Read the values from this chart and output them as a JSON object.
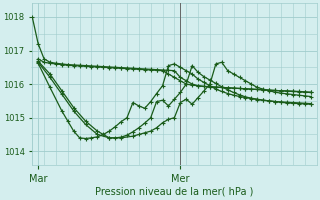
{
  "bg_color": "#d4eeee",
  "grid_color": "#a0cccc",
  "line_color": "#1a5c1a",
  "marker_color": "#1a5c1a",
  "text_color": "#1a5c1a",
  "xlabel": "Pression niveau de la mer( hPa )",
  "yticks": [
    1014,
    1015,
    1016,
    1017,
    1018
  ],
  "ylim": [
    1013.6,
    1018.4
  ],
  "xlim": [
    0,
    48
  ],
  "mar_x": 1,
  "mer_x": 25,
  "vline_x": 25,
  "series": [
    {
      "x": [
        0,
        1,
        2,
        3,
        4,
        5,
        6,
        7,
        8,
        9,
        10,
        11,
        12,
        13,
        14,
        15,
        16,
        17,
        18,
        19,
        20,
        21,
        22,
        23,
        24,
        25,
        26,
        27,
        28,
        29,
        30,
        31,
        32,
        33,
        34,
        35,
        36,
        37,
        38,
        39,
        40,
        41,
        42,
        43,
        44,
        45,
        46,
        47
      ],
      "y": [
        1018.0,
        1017.2,
        1016.75,
        1016.65,
        1016.62,
        1016.6,
        1016.58,
        1016.57,
        1016.56,
        1016.55,
        1016.54,
        1016.53,
        1016.52,
        1016.51,
        1016.5,
        1016.49,
        1016.48,
        1016.47,
        1016.46,
        1016.45,
        1016.44,
        1016.43,
        1016.42,
        1016.41,
        1016.4,
        1016.2,
        1016.1,
        1016.0,
        1015.95,
        1015.93,
        1015.92,
        1015.91,
        1015.9,
        1015.89,
        1015.88,
        1015.87,
        1015.86,
        1015.85,
        1015.84,
        1015.83,
        1015.82,
        1015.81,
        1015.8,
        1015.8,
        1015.79,
        1015.78,
        1015.77,
        1015.76
      ]
    },
    {
      "x": [
        1,
        2,
        3,
        4,
        5,
        6,
        7,
        8,
        9,
        10,
        11,
        12,
        13,
        14,
        15,
        16,
        17,
        18,
        19,
        20,
        21,
        22,
        23,
        24,
        25,
        26,
        27,
        28,
        29,
        30,
        31,
        32,
        33,
        34,
        35,
        36,
        37,
        38,
        39,
        40,
        41,
        42,
        43,
        44,
        45,
        46,
        47
      ],
      "y": [
        1016.75,
        1016.65,
        1016.62,
        1016.6,
        1016.58,
        1016.56,
        1016.55,
        1016.54,
        1016.53,
        1016.52,
        1016.51,
        1016.5,
        1016.49,
        1016.48,
        1016.47,
        1016.46,
        1016.45,
        1016.44,
        1016.43,
        1016.42,
        1016.41,
        1016.4,
        1016.3,
        1016.2,
        1016.1,
        1016.0,
        1015.97,
        1015.95,
        1015.93,
        1015.92,
        1015.91,
        1015.9,
        1015.89,
        1015.88,
        1015.87,
        1015.86,
        1015.85,
        1015.84,
        1015.83,
        1015.82,
        1015.81,
        1015.8,
        1015.79,
        1015.78,
        1015.77,
        1015.76,
        1015.75
      ]
    },
    {
      "x": [
        1,
        3,
        5,
        7,
        9,
        11,
        13,
        15,
        17,
        18,
        19,
        20,
        21,
        22,
        23,
        24,
        25,
        26,
        27,
        28,
        29,
        30,
        31,
        32,
        33,
        34,
        35,
        36,
        37,
        38,
        39,
        40,
        41,
        42,
        43,
        44,
        45,
        46,
        47
      ],
      "y": [
        1016.68,
        1016.3,
        1015.8,
        1015.3,
        1014.9,
        1014.6,
        1014.4,
        1014.4,
        1014.45,
        1014.5,
        1014.55,
        1014.6,
        1014.7,
        1014.85,
        1014.95,
        1015.0,
        1015.45,
        1015.55,
        1015.4,
        1015.6,
        1015.8,
        1016.0,
        1016.6,
        1016.65,
        1016.4,
        1016.3,
        1016.2,
        1016.1,
        1016.0,
        1015.9,
        1015.85,
        1015.8,
        1015.76,
        1015.73,
        1015.71,
        1015.69,
        1015.67,
        1015.65,
        1015.63
      ]
    },
    {
      "x": [
        1,
        3,
        5,
        7,
        9,
        11,
        13,
        14,
        15,
        16,
        17,
        18,
        19,
        20,
        21,
        22,
        23,
        24,
        25,
        26,
        27,
        28,
        29,
        30,
        31,
        32,
        33,
        34,
        35,
        36,
        37,
        38,
        39,
        40,
        41,
        42,
        43,
        44,
        45,
        46,
        47
      ],
      "y": [
        1016.65,
        1016.2,
        1015.7,
        1015.2,
        1014.8,
        1014.5,
        1014.4,
        1014.4,
        1014.42,
        1014.48,
        1014.58,
        1014.7,
        1014.84,
        1015.0,
        1015.48,
        1015.52,
        1015.35,
        1015.55,
        1015.75,
        1016.0,
        1016.55,
        1016.35,
        1016.22,
        1016.12,
        1016.02,
        1015.92,
        1015.83,
        1015.75,
        1015.68,
        1015.62,
        1015.58,
        1015.55,
        1015.52,
        1015.5,
        1015.48,
        1015.46,
        1015.44,
        1015.43,
        1015.42,
        1015.41,
        1015.4
      ]
    },
    {
      "x": [
        1,
        3,
        5,
        6,
        7,
        8,
        9,
        10,
        11,
        12,
        13,
        14,
        15,
        16,
        17,
        18,
        19,
        20,
        21,
        22,
        23,
        24,
        25,
        26,
        27,
        28,
        29,
        30,
        31,
        32,
        33,
        34,
        35,
        36,
        37,
        38,
        39,
        40,
        41,
        42,
        43,
        44,
        45,
        46,
        47
      ],
      "y": [
        1016.62,
        1015.9,
        1015.2,
        1014.9,
        1014.6,
        1014.4,
        1014.38,
        1014.4,
        1014.43,
        1014.5,
        1014.6,
        1014.73,
        1014.88,
        1015.0,
        1015.45,
        1015.35,
        1015.28,
        1015.48,
        1015.72,
        1015.95,
        1016.55,
        1016.6,
        1016.5,
        1016.4,
        1016.3,
        1016.15,
        1016.05,
        1015.95,
        1015.85,
        1015.78,
        1015.72,
        1015.67,
        1015.63,
        1015.6,
        1015.57,
        1015.54,
        1015.52,
        1015.5,
        1015.48,
        1015.47,
        1015.46,
        1015.45,
        1015.44,
        1015.43,
        1015.42
      ]
    }
  ],
  "marker_size": 3,
  "linewidth": 0.9
}
